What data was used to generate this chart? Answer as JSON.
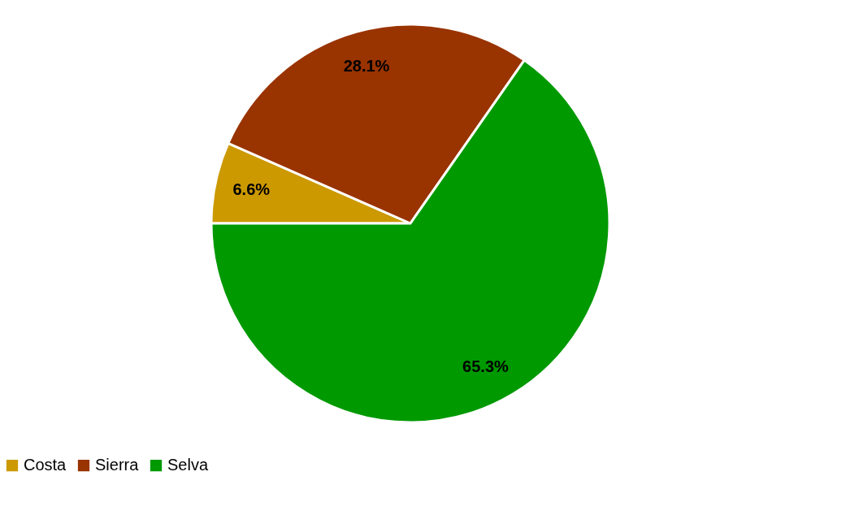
{
  "chart_data": {
    "type": "pie",
    "categories": [
      "Costa",
      "Sierra",
      "Selva"
    ],
    "values": [
      6.6,
      28.1,
      65.3
    ],
    "colors": [
      "#cc9900",
      "#993300",
      "#009900"
    ],
    "value_labels": [
      "6.6%",
      "28.1%",
      "65.3%"
    ],
    "legend": "bottom"
  }
}
